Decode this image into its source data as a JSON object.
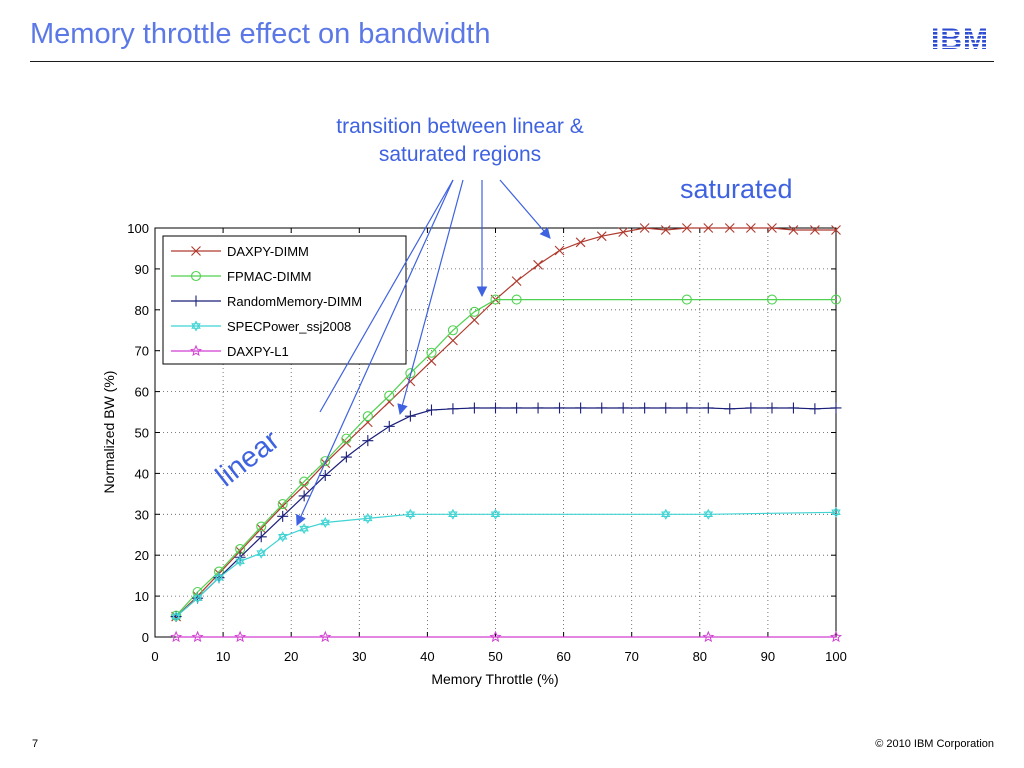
{
  "slide": {
    "title": "Memory throttle effect on bandwidth",
    "logo_text": "IBM",
    "page_number": "7",
    "copyright": "© 2010 IBM Corporation"
  },
  "callouts": {
    "transition": "transition between linear &\nsaturated regions",
    "saturated": "saturated",
    "linear": "linear"
  },
  "colors": {
    "title": "#5b78e6",
    "callout": "#3f62e0",
    "logo": "#2c4bd1"
  },
  "chart_data": {
    "type": "line",
    "title": "",
    "xlabel": "Memory Throttle (%)",
    "ylabel": "Normalized BW (%)",
    "xlim": [
      0,
      100
    ],
    "ylim": [
      0,
      100
    ],
    "xticks": [
      0,
      10,
      20,
      30,
      40,
      50,
      60,
      70,
      80,
      90,
      100
    ],
    "yticks": [
      0,
      10,
      20,
      30,
      40,
      50,
      60,
      70,
      80,
      90,
      100
    ],
    "grid": true,
    "legend_position": "top-left",
    "series": [
      {
        "name": "DAXPY-DIMM",
        "color": "#b03a2e",
        "marker": "x",
        "x": [
          3.1,
          6.25,
          9.4,
          12.5,
          15.6,
          18.75,
          21.9,
          25,
          28.1,
          31.25,
          34.4,
          37.5,
          40.6,
          43.75,
          46.9,
          50,
          53.1,
          56.25,
          59.4,
          62.5,
          65.6,
          68.75,
          71.9,
          75,
          78.1,
          81.25,
          84.4,
          87.5,
          90.6,
          93.75,
          96.9,
          100
        ],
        "y": [
          5,
          10,
          15.5,
          21,
          26.5,
          32,
          37,
          42.5,
          47.5,
          52.5,
          57.5,
          62.5,
          67.5,
          72.5,
          77.5,
          82.5,
          87,
          91,
          94.5,
          96.5,
          98,
          99,
          100,
          99.5,
          100,
          100,
          100,
          100,
          100,
          99.5,
          99.5,
          99.5
        ]
      },
      {
        "name": "FPMAC-DIMM",
        "color": "#4fd24f",
        "marker": "o",
        "x": [
          3.1,
          6.25,
          9.4,
          12.5,
          15.6,
          18.75,
          21.9,
          25,
          28.1,
          31.25,
          34.4,
          37.5,
          40.6,
          43.75,
          46.9,
          50,
          53.1,
          78.1,
          90.6,
          100
        ],
        "y": [
          5.2,
          11,
          16,
          21.5,
          27,
          32.5,
          38,
          43,
          48.5,
          54,
          59,
          64.5,
          69.5,
          75,
          79.5,
          82.5,
          82.5,
          82.5,
          82.5,
          82.5
        ]
      },
      {
        "name": "RandomMemory-DIMM",
        "color": "#1a1f7a",
        "marker": "+",
        "x": [
          3.1,
          6.25,
          9.4,
          12.5,
          15.6,
          18.75,
          21.9,
          25,
          28.1,
          31.25,
          34.4,
          37.5,
          40.6,
          43.75,
          46.9,
          50,
          53.1,
          56.25,
          59.4,
          62.5,
          65.6,
          68.75,
          71.9,
          75,
          78.1,
          81.25,
          84.4,
          87.5,
          90.6,
          93.75,
          96.9,
          100
        ],
        "y": [
          5,
          9.5,
          14.5,
          19.5,
          24.5,
          29.5,
          34.5,
          39.5,
          44,
          48,
          51.5,
          54,
          55.5,
          55.8,
          56,
          56,
          56,
          56,
          56,
          56,
          56,
          56,
          56,
          56,
          56,
          56,
          55.8,
          56,
          56,
          56,
          55.8,
          56
        ]
      },
      {
        "name": "SPECPower_ssj2008",
        "color": "#3fd3d3",
        "marker": "hexagram",
        "x": [
          3.1,
          6.25,
          9.4,
          12.5,
          15.6,
          18.75,
          21.9,
          25,
          31.25,
          37.5,
          43.75,
          50,
          75,
          81.25,
          100
        ],
        "y": [
          5,
          9.5,
          14.5,
          18.5,
          20.5,
          24.5,
          26.5,
          28,
          29,
          30,
          30,
          30,
          30,
          30,
          30.5
        ]
      },
      {
        "name": "DAXPY-L1",
        "color": "#d23fd2",
        "marker": "*",
        "x": [
          3.1,
          6.25,
          12.5,
          25,
          50,
          81.25,
          100
        ],
        "y": [
          0,
          0,
          0,
          0,
          0,
          0,
          0
        ]
      }
    ]
  }
}
